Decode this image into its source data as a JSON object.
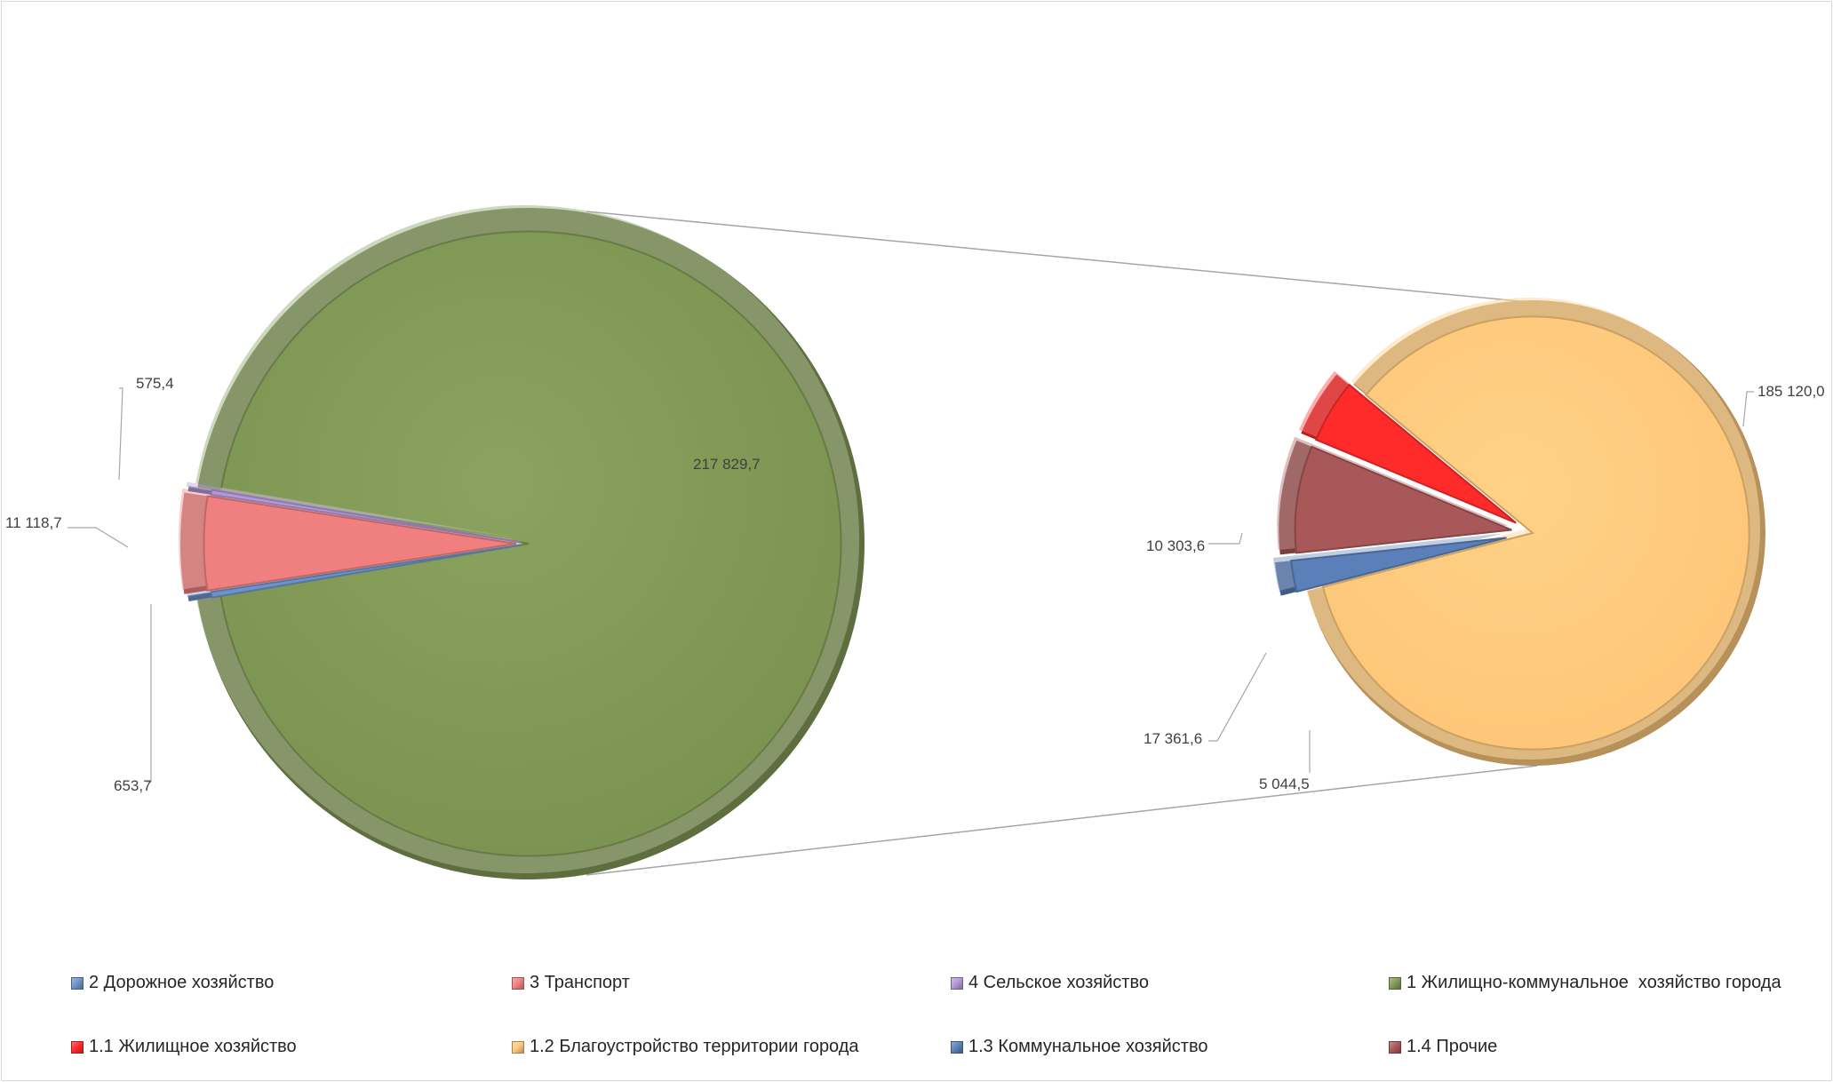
{
  "chart_data": {
    "type": "bar-of-pie",
    "primary": {
      "slices": [
        {
          "name": "1 Жилищно-коммунальное  хозяйство города",
          "value": 217829.7,
          "label": "217 829,7",
          "color": "#829958"
        },
        {
          "name": "2 Дорожное хозяйство",
          "value": 653.7,
          "label": "653,7",
          "color": "#6e93c8"
        },
        {
          "name": "3 Транспорт",
          "value": 11118.7,
          "label": "11 118,7",
          "color": "#f08080"
        },
        {
          "name": "4 Сельское хозяйство",
          "value": 575.4,
          "label": "575,4",
          "color": "#b497d6"
        }
      ]
    },
    "secondary": {
      "slices": [
        {
          "name": "1.2 Благоустройство территории города",
          "value": 185120.0,
          "label": "185 120,0",
          "color": "#fdc97c"
        },
        {
          "name": "1.3 Коммунальное хозяйство",
          "value": 5044.5,
          "label": "5 044,5",
          "color": "#5b7fb8"
        },
        {
          "name": "1.4 Прочие",
          "value": 17361.6,
          "label": "17 361,6",
          "color": "#a85858"
        },
        {
          "name": "1.1 Жилищное хозяйство",
          "value": 10303.6,
          "label": "10 303,6",
          "color": "#ff2a2a"
        }
      ]
    },
    "legend_position": "bottom",
    "legend": [
      {
        "label": "2 Дорожное хозяйство",
        "color": "#6e93c8"
      },
      {
        "label": "3 Транспорт",
        "color": "#f08080"
      },
      {
        "label": "4 Сельское хозяйство",
        "color": "#b497d6"
      },
      {
        "label": "1 Жилищно-коммунальное  хозяйство города",
        "color": "#829958"
      },
      {
        "label": "1.1 Жилищное хозяйство",
        "color": "#ff2a2a"
      },
      {
        "label": "1.2 Благоустройство территории города",
        "color": "#fdc97c"
      },
      {
        "label": "1.3 Коммунальное хозяйство",
        "color": "#5b7fb8"
      },
      {
        "label": "1.4 Прочие",
        "color": "#a85858"
      }
    ]
  }
}
